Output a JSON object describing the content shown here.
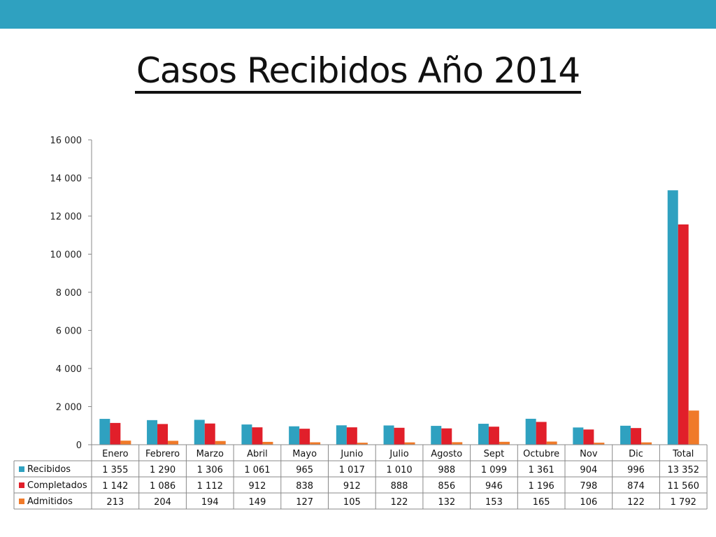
{
  "title": "Casos Recibidos Año 2014",
  "chart_data": {
    "type": "bar",
    "categories": [
      "Enero",
      "Febrero",
      "Marzo",
      "Abril",
      "Mayo",
      "Junio",
      "Julio",
      "Agosto",
      "Sept",
      "Octubre",
      "Nov",
      "Dic",
      "Total"
    ],
    "series": [
      {
        "name": "Recibidos",
        "color": "#2fa1c0",
        "values": [
          1355,
          1290,
          1306,
          1061,
          965,
          1017,
          1010,
          988,
          1099,
          1361,
          904,
          996,
          13352
        ],
        "labels": [
          "1 355",
          "1 290",
          "1 306",
          "1 061",
          "965",
          "1 017",
          "1 010",
          "988",
          "1 099",
          "1 361",
          "904",
          "996",
          "13 352"
        ]
      },
      {
        "name": "Completados",
        "color": "#e11f2a",
        "values": [
          1142,
          1086,
          1112,
          912,
          838,
          912,
          888,
          856,
          946,
          1196,
          798,
          874,
          11560
        ],
        "labels": [
          "1 142",
          "1 086",
          "1 112",
          "912",
          "838",
          "912",
          "888",
          "856",
          "946",
          "1 196",
          "798",
          "874",
          "11 560"
        ]
      },
      {
        "name": "Admitidos",
        "color": "#f07a29",
        "values": [
          213,
          204,
          194,
          149,
          127,
          105,
          122,
          132,
          153,
          165,
          106,
          122,
          1792
        ],
        "labels": [
          "213",
          "204",
          "194",
          "149",
          "127",
          "105",
          "122",
          "132",
          "153",
          "165",
          "106",
          "122",
          "1 792"
        ]
      }
    ],
    "ylim": [
      0,
      16000
    ],
    "yticks": [
      0,
      2000,
      4000,
      6000,
      8000,
      10000,
      12000,
      14000,
      16000
    ],
    "ytick_labels": [
      "0",
      "2 000",
      "4 000",
      "6 000",
      "8 000",
      "10 000",
      "12 000",
      "14 000",
      "16 000"
    ],
    "legend": "data-table",
    "grid": false
  }
}
